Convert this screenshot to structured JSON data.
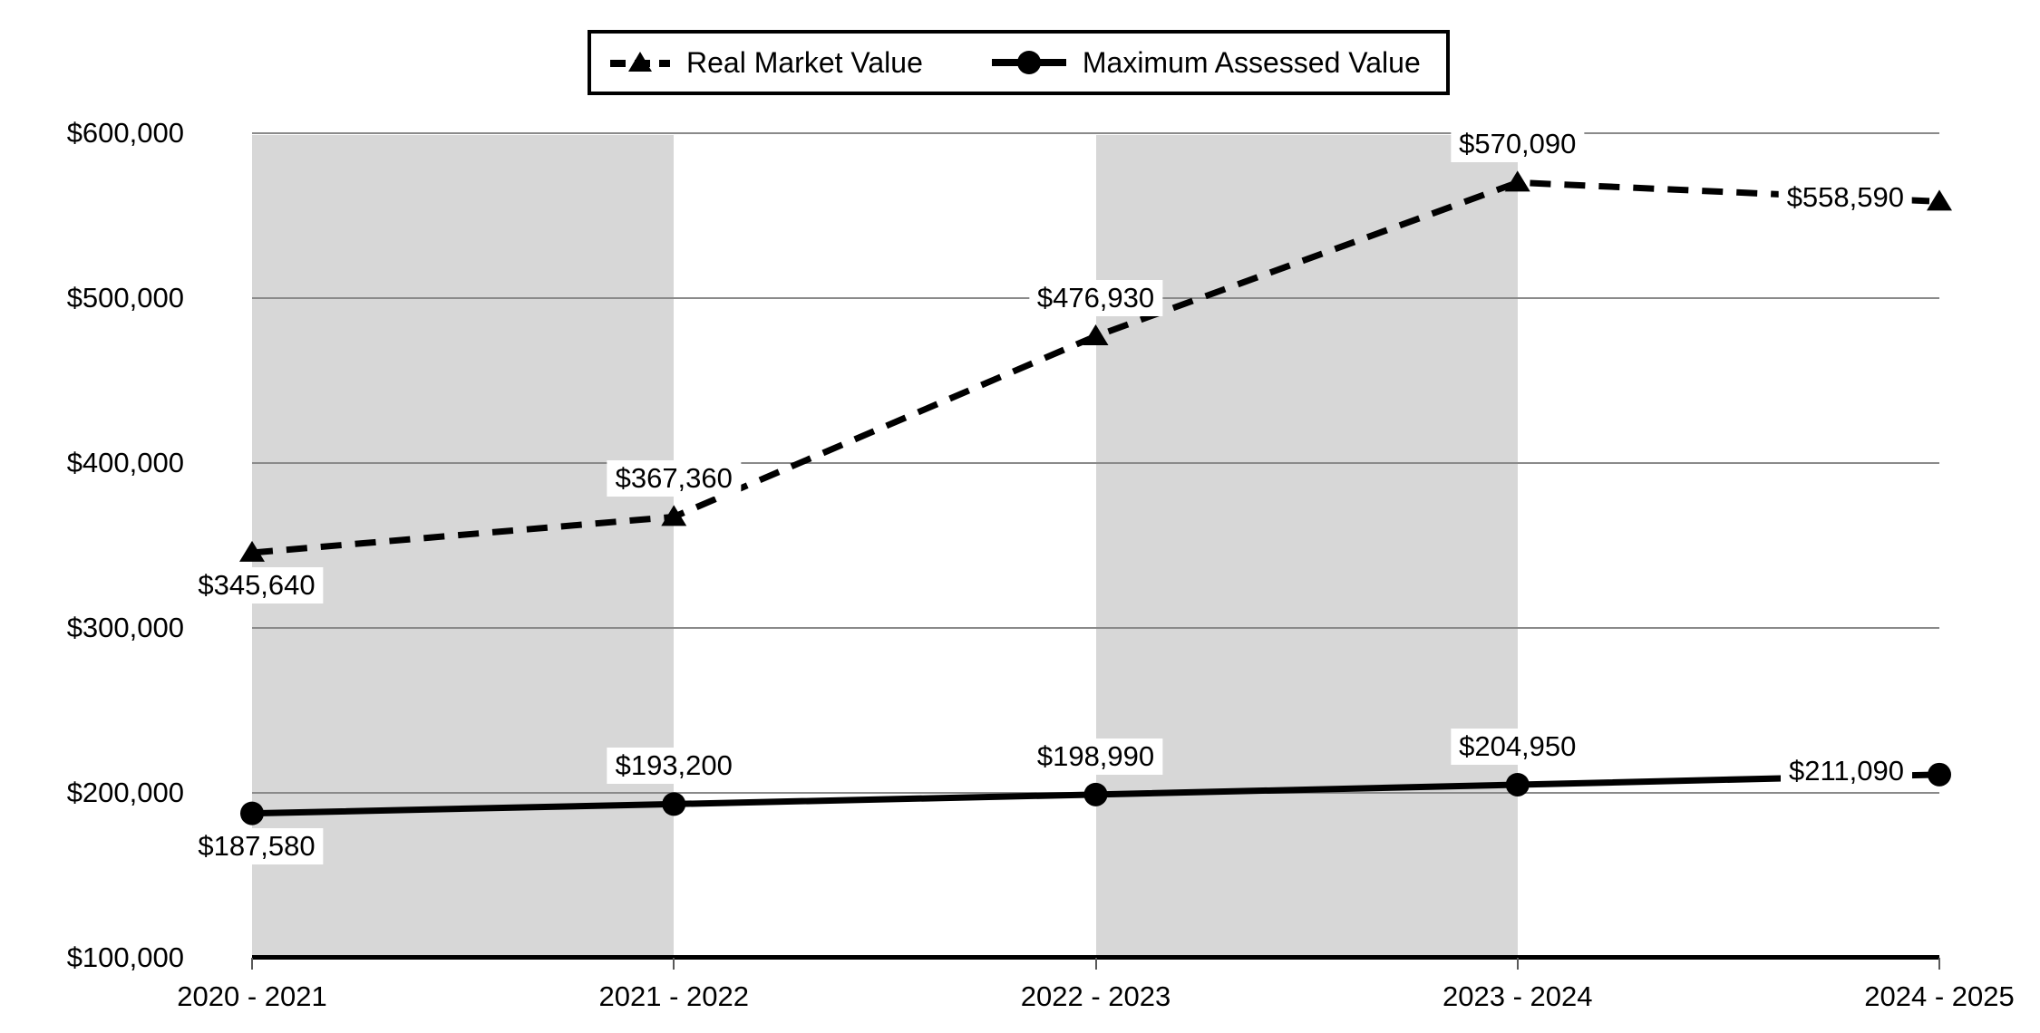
{
  "chart_data": {
    "type": "line",
    "title": "",
    "categories": [
      "2020 - 2021",
      "2021 - 2022",
      "2022 - 2023",
      "2023 - 2024",
      "2024 - 2025"
    ],
    "series": [
      {
        "name": "Real Market Value",
        "values": [
          345640,
          367360,
          476930,
          570090,
          558590
        ],
        "labels": [
          "$345,640",
          "$367,360",
          "$476,930",
          "$570,090",
          "$558,590"
        ],
        "line_style": "dashed",
        "marker": "triangle",
        "color": "#000000",
        "label_positions": [
          "below",
          "above",
          "above",
          "above",
          "left"
        ]
      },
      {
        "name": "Maximum Assessed Value",
        "values": [
          187580,
          193200,
          198990,
          204950,
          211090
        ],
        "labels": [
          "$187,580",
          "$193,200",
          "$198,990",
          "$204,950",
          "$211,090"
        ],
        "line_style": "solid",
        "marker": "circle",
        "color": "#000000",
        "label_positions": [
          "below",
          "above",
          "above",
          "above",
          "left"
        ]
      }
    ],
    "y_ticks": [
      "$100,000",
      "$200,000",
      "$300,000",
      "$400,000",
      "$500,000",
      "$600,000"
    ],
    "ylim": [
      100000,
      600000
    ],
    "xlabel": "",
    "ylabel": "",
    "grid": true,
    "legend_position": "top-center",
    "shaded_gaps": [
      0,
      2
    ],
    "colors": {
      "band": "#d7d7d7",
      "gridline": "#8a8a8a",
      "axis": "#000000",
      "series": "#000000",
      "background": "#ffffff",
      "label_background": "#ffffff",
      "text": "#000000"
    }
  }
}
